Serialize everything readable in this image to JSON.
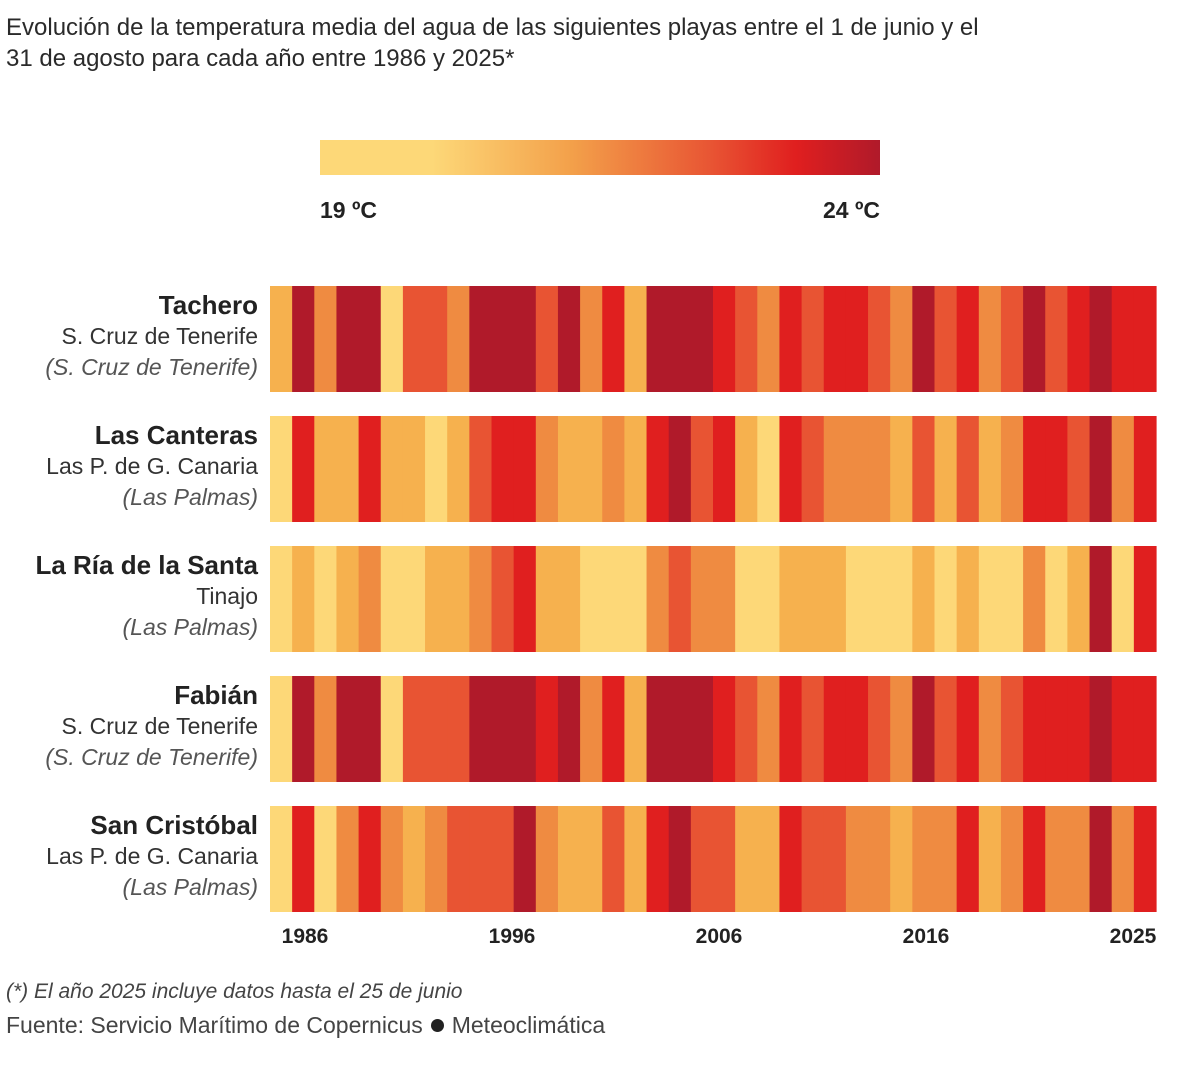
{
  "title": "Evolución de la temperatura media del agua de las siguientes playas entre el 1 de junio y el 31 de agosto para cada año entre 1986 y 2025*",
  "legend": {
    "min_label": "19 ºC",
    "max_label": "24 ºC",
    "colors": [
      "#FDD878",
      "#F6B14E",
      "#EF8B41",
      "#E85433",
      "#E01F1F",
      "#B01A2A"
    ]
  },
  "note": "(*) El año 2025 incluye datos hasta el 25 de junio",
  "source": {
    "prefix": "Fuente: Servicio Marítimo de Copernicus",
    "suffix": "Meteoclimática"
  },
  "chart_data": {
    "type": "heatmap",
    "title": "Evolución de la temperatura media del agua de las siguientes playas entre el 1 de junio y el 31 de agosto para cada año entre 1986 y 2025*",
    "xlabel": "",
    "ylabel": "",
    "units": "ºC",
    "color_range": [
      19,
      24
    ],
    "legend_position": "top-center",
    "x": [
      1986,
      1987,
      1988,
      1989,
      1990,
      1991,
      1992,
      1993,
      1994,
      1995,
      1996,
      1997,
      1998,
      1999,
      2000,
      2001,
      2002,
      2003,
      2004,
      2005,
      2006,
      2007,
      2008,
      2009,
      2010,
      2011,
      2012,
      2013,
      2014,
      2015,
      2016,
      2017,
      2018,
      2019,
      2020,
      2021,
      2022,
      2023,
      2024,
      2025
    ],
    "x_tick_labels": [
      "1986",
      "1996",
      "2006",
      "2016",
      "2025"
    ],
    "rows": [
      {
        "beach": "Tachero",
        "town": "S. Cruz de Tenerife",
        "province": "(S. Cruz de Tenerife)",
        "values": [
          20,
          24,
          21,
          24,
          24,
          19,
          22,
          22,
          21,
          24,
          24,
          24,
          22,
          24,
          21,
          23,
          20,
          24,
          24,
          24,
          23,
          22,
          21,
          23,
          22,
          23,
          23,
          22,
          21,
          24,
          22,
          23,
          21,
          22,
          24,
          22,
          23,
          24,
          23,
          23
        ]
      },
      {
        "beach": "Las Canteras",
        "town": "Las P. de G. Canaria",
        "province": "(Las Palmas)",
        "values": [
          19,
          23,
          20,
          20,
          23,
          20,
          20,
          19,
          20,
          22,
          23,
          23,
          21,
          20,
          20,
          21,
          20,
          23,
          24,
          22,
          23,
          20,
          19,
          23,
          22,
          21,
          21,
          21,
          20,
          22,
          20,
          22,
          20,
          21,
          23,
          23,
          22,
          24,
          21,
          23
        ]
      },
      {
        "beach": "La Ría de la Santa",
        "town": "Tinajo",
        "province": "(Las Palmas)",
        "values": [
          19,
          20,
          19,
          20,
          21,
          19,
          19,
          20,
          20,
          21,
          22,
          23,
          20,
          20,
          19,
          19,
          19,
          21,
          22,
          21,
          21,
          19,
          19,
          20,
          20,
          20,
          19,
          19,
          19,
          20,
          19,
          20,
          19,
          19,
          21,
          19,
          20,
          24,
          19,
          23
        ]
      },
      {
        "beach": "Fabián",
        "town": "S. Cruz de Tenerife",
        "province": "(S. Cruz de Tenerife)",
        "values": [
          19,
          24,
          21,
          24,
          24,
          19,
          22,
          22,
          22,
          24,
          24,
          24,
          23,
          24,
          21,
          23,
          20,
          24,
          24,
          24,
          23,
          22,
          21,
          23,
          22,
          23,
          23,
          22,
          21,
          24,
          22,
          23,
          21,
          22,
          23,
          23,
          23,
          24,
          23,
          23
        ]
      },
      {
        "beach": "San Cristóbal",
        "town": "Las P. de G. Canaria",
        "province": "(Las Palmas)",
        "values": [
          19,
          23,
          19,
          21,
          23,
          21,
          20,
          21,
          22,
          22,
          22,
          24,
          21,
          20,
          20,
          22,
          20,
          23,
          24,
          22,
          22,
          20,
          20,
          23,
          22,
          22,
          21,
          21,
          20,
          21,
          21,
          23,
          20,
          21,
          23,
          21,
          21,
          24,
          21,
          23
        ]
      }
    ]
  }
}
